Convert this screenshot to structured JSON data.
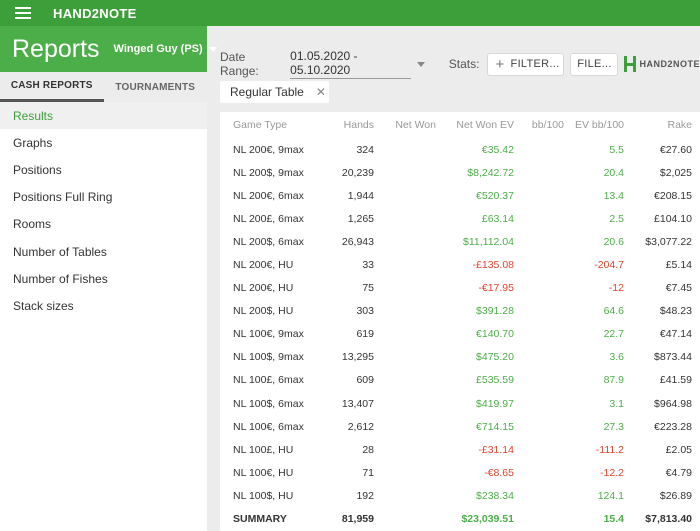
{
  "app": {
    "name": "HAND2NOTE"
  },
  "header": {
    "title": "Reports",
    "player": "Winged Guy (PS)"
  },
  "tabs": [
    {
      "label": "CASH REPORTS",
      "active": true
    },
    {
      "label": "TOURNAMENTS",
      "active": false
    }
  ],
  "nav": [
    {
      "label": "Results",
      "active": true
    },
    {
      "label": "Graphs"
    },
    {
      "label": "Positions"
    },
    {
      "label": "Positions Full Ring"
    },
    {
      "label": "Rooms"
    },
    {
      "label": "Number of Tables"
    },
    {
      "label": "Number of Fishes"
    },
    {
      "label": "Stack sizes"
    }
  ],
  "filters": {
    "date_label": "Date Range:",
    "date_value": "01.05.2020 - 05.10.2020",
    "stats_label": "Stats:",
    "filter_button": "FILTER...",
    "file_button": "FILE...",
    "logo_text": "HAND2NOTE",
    "chip": "Regular Table"
  },
  "colors": {
    "accent": "#4cae48",
    "titlebar": "#3d9f3a",
    "positive": "#4cae48",
    "negative": "#e2412c"
  },
  "table": {
    "columns": [
      "Game Type",
      "Hands",
      "Net Won",
      "Net Won  EV",
      "bb/100",
      "EV bb/100",
      "Rake"
    ],
    "rows": [
      {
        "game": "NL 200€, 9max",
        "hands": "324",
        "net_won": "",
        "net_won_ev": "€35.42",
        "bb100": "",
        "ev_bb100": "5.5",
        "rake": "€27.60"
      },
      {
        "game": "NL 200$, 9max",
        "hands": "20,239",
        "net_won": "",
        "net_won_ev": "$8,242.72",
        "bb100": "",
        "ev_bb100": "20.4",
        "rake": "$2,025"
      },
      {
        "game": "NL 200€, 6max",
        "hands": "1,944",
        "net_won": "",
        "net_won_ev": "€520.37",
        "bb100": "",
        "ev_bb100": "13.4",
        "rake": "€208.15"
      },
      {
        "game": "NL 200£, 6max",
        "hands": "1,265",
        "net_won": "",
        "net_won_ev": "£63.14",
        "bb100": "",
        "ev_bb100": "2.5",
        "rake": "£104.10"
      },
      {
        "game": "NL 200$, 6max",
        "hands": "26,943",
        "net_won": "",
        "net_won_ev": "$11,112.04",
        "bb100": "",
        "ev_bb100": "20.6",
        "rake": "$3,077.22"
      },
      {
        "game": "NL 200€, HU",
        "hands": "33",
        "net_won": "",
        "net_won_ev": "-£135.08",
        "bb100": "",
        "ev_bb100": "-204.7",
        "rake": "£5.14"
      },
      {
        "game": "NL 200€, HU",
        "hands": "75",
        "net_won": "",
        "net_won_ev": "-€17.95",
        "bb100": "",
        "ev_bb100": "-12",
        "rake": "€7.45"
      },
      {
        "game": "NL 200$, HU",
        "hands": "303",
        "net_won": "",
        "net_won_ev": "$391.28",
        "bb100": "",
        "ev_bb100": "64.6",
        "rake": "$48.23"
      },
      {
        "game": "NL 100€, 9max",
        "hands": "619",
        "net_won": "",
        "net_won_ev": "€140.70",
        "bb100": "",
        "ev_bb100": "22.7",
        "rake": "€47.14"
      },
      {
        "game": "NL 100$, 9max",
        "hands": "13,295",
        "net_won": "",
        "net_won_ev": "$475.20",
        "bb100": "",
        "ev_bb100": "3.6",
        "rake": "$873.44"
      },
      {
        "game": "NL 100£, 6max",
        "hands": "609",
        "net_won": "",
        "net_won_ev": "£535.59",
        "bb100": "",
        "ev_bb100": "87.9",
        "rake": "£41.59"
      },
      {
        "game": "NL 100$, 6max",
        "hands": "13,407",
        "net_won": "",
        "net_won_ev": "$419.97",
        "bb100": "",
        "ev_bb100": "3.1",
        "rake": "$964.98"
      },
      {
        "game": "NL 100€, 6max",
        "hands": "2,612",
        "net_won": "",
        "net_won_ev": "€714.15",
        "bb100": "",
        "ev_bb100": "27.3",
        "rake": "€223.28"
      },
      {
        "game": "NL 100£, HU",
        "hands": "28",
        "net_won": "",
        "net_won_ev": "-£31.14",
        "bb100": "",
        "ev_bb100": "-111.2",
        "rake": "£2.05"
      },
      {
        "game": "NL 100€, HU",
        "hands": "71",
        "net_won": "",
        "net_won_ev": "-€8.65",
        "bb100": "",
        "ev_bb100": "-12.2",
        "rake": "€4.79"
      },
      {
        "game": "NL 100$, HU",
        "hands": "192",
        "net_won": "",
        "net_won_ev": "$238.34",
        "bb100": "",
        "ev_bb100": "124.1",
        "rake": "$26.89"
      }
    ],
    "summary": {
      "game": "SUMMARY",
      "hands": "81,959",
      "net_won": "",
      "net_won_ev": "$23,039.51",
      "bb100": "",
      "ev_bb100": "15.4",
      "rake": "$7,813.40"
    }
  }
}
